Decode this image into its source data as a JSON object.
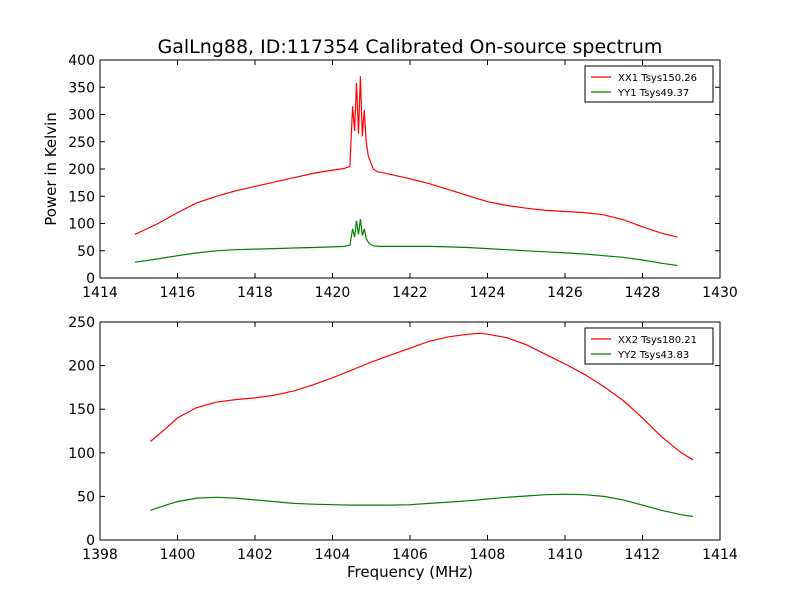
{
  "title": "GalLng88, ID:117354 Calibrated On-source spectrum",
  "chart_data": [
    {
      "type": "line",
      "ylabel": "Power in Kelvin",
      "xlabel": "",
      "xlim": [
        1414,
        1430
      ],
      "ylim": [
        0,
        400
      ],
      "xticks": [
        1414,
        1416,
        1418,
        1420,
        1422,
        1424,
        1426,
        1428,
        1430
      ],
      "yticks": [
        0,
        50,
        100,
        150,
        200,
        250,
        300,
        350,
        400
      ],
      "grid": false,
      "legend_position": "top-right",
      "series": [
        {
          "name": "XX1 Tsys150.26",
          "color": "#ff0000",
          "x": [
            1414.9,
            1415.5,
            1416.0,
            1416.5,
            1417.0,
            1417.5,
            1418.0,
            1418.5,
            1419.0,
            1419.5,
            1420.0,
            1420.3,
            1420.45,
            1420.52,
            1420.57,
            1420.62,
            1420.67,
            1420.72,
            1420.77,
            1420.82,
            1420.87,
            1420.92,
            1420.97,
            1421.05,
            1421.15,
            1421.25,
            1421.5,
            1422.0,
            1422.5,
            1423.0,
            1423.5,
            1424.0,
            1424.5,
            1425.0,
            1425.5,
            1426.0,
            1426.5,
            1427.0,
            1427.5,
            1428.0,
            1428.5,
            1428.9
          ],
          "y": [
            80,
            100,
            120,
            138,
            150,
            160,
            168,
            176,
            184,
            192,
            198,
            201,
            205,
            315,
            270,
            358,
            265,
            370,
            260,
            308,
            250,
            225,
            215,
            200,
            195,
            194,
            190,
            182,
            173,
            162,
            151,
            140,
            133,
            128,
            124,
            122,
            120,
            116,
            107,
            94,
            82,
            75
          ]
        },
        {
          "name": "YY1 Tsys49.37",
          "color": "#008000",
          "x": [
            1414.9,
            1415.5,
            1416.0,
            1416.5,
            1417.0,
            1417.5,
            1418.0,
            1418.5,
            1419.0,
            1419.5,
            1420.0,
            1420.3,
            1420.45,
            1420.52,
            1420.57,
            1420.62,
            1420.67,
            1420.72,
            1420.77,
            1420.82,
            1420.87,
            1420.92,
            1420.97,
            1421.05,
            1421.2,
            1421.5,
            1422.0,
            1422.5,
            1423.0,
            1423.5,
            1424.0,
            1424.5,
            1425.0,
            1425.5,
            1426.0,
            1426.5,
            1427.0,
            1427.5,
            1428.0,
            1428.5,
            1428.9
          ],
          "y": [
            29,
            35,
            41,
            46,
            50,
            52,
            53,
            54,
            55,
            56,
            57,
            58,
            60,
            90,
            75,
            105,
            80,
            108,
            78,
            90,
            72,
            66,
            62,
            59,
            58,
            58,
            58,
            58,
            57,
            56,
            54,
            52,
            50,
            48,
            46,
            44,
            41,
            38,
            33,
            27,
            23
          ]
        }
      ]
    },
    {
      "type": "line",
      "xlabel": "Frequency (MHz)",
      "ylabel": "",
      "xlim": [
        1398,
        1414
      ],
      "ylim": [
        0,
        250
      ],
      "xticks": [
        1398,
        1400,
        1402,
        1404,
        1406,
        1408,
        1410,
        1412,
        1414
      ],
      "yticks": [
        0,
        50,
        100,
        150,
        200,
        250
      ],
      "grid": false,
      "legend_position": "top-right",
      "series": [
        {
          "name": "XX2 Tsys180.21",
          "color": "#ff0000",
          "x": [
            1399.3,
            1399.7,
            1400.0,
            1400.5,
            1401.0,
            1401.5,
            1402.0,
            1402.5,
            1403.0,
            1403.5,
            1404.0,
            1404.5,
            1405.0,
            1405.5,
            1406.0,
            1406.5,
            1407.0,
            1407.5,
            1407.8,
            1408.0,
            1408.5,
            1409.0,
            1409.5,
            1410.0,
            1410.5,
            1411.0,
            1411.5,
            1412.0,
            1412.5,
            1413.0,
            1413.3
          ],
          "y": [
            113,
            128,
            140,
            152,
            158,
            161,
            163,
            166,
            171,
            178,
            186,
            195,
            204,
            212,
            220,
            228,
            233,
            236,
            237,
            236,
            232,
            224,
            213,
            202,
            190,
            176,
            160,
            140,
            118,
            100,
            92
          ]
        },
        {
          "name": "YY2 Tsys43.83",
          "color": "#008000",
          "x": [
            1399.3,
            1399.7,
            1400.0,
            1400.5,
            1401.0,
            1401.5,
            1402.0,
            1402.5,
            1403.0,
            1403.5,
            1404.0,
            1404.5,
            1405.0,
            1405.5,
            1406.0,
            1406.5,
            1407.0,
            1407.5,
            1408.0,
            1408.5,
            1409.0,
            1409.5,
            1410.0,
            1410.5,
            1411.0,
            1411.5,
            1412.0,
            1412.5,
            1413.0,
            1413.3
          ],
          "y": [
            34,
            40,
            44,
            48,
            49,
            48,
            46,
            44,
            42,
            41,
            40.5,
            40,
            40,
            40,
            40.5,
            42,
            43.5,
            45,
            47,
            49,
            50.5,
            52,
            52.5,
            52,
            50,
            46,
            40,
            34,
            29,
            27
          ]
        }
      ]
    }
  ]
}
